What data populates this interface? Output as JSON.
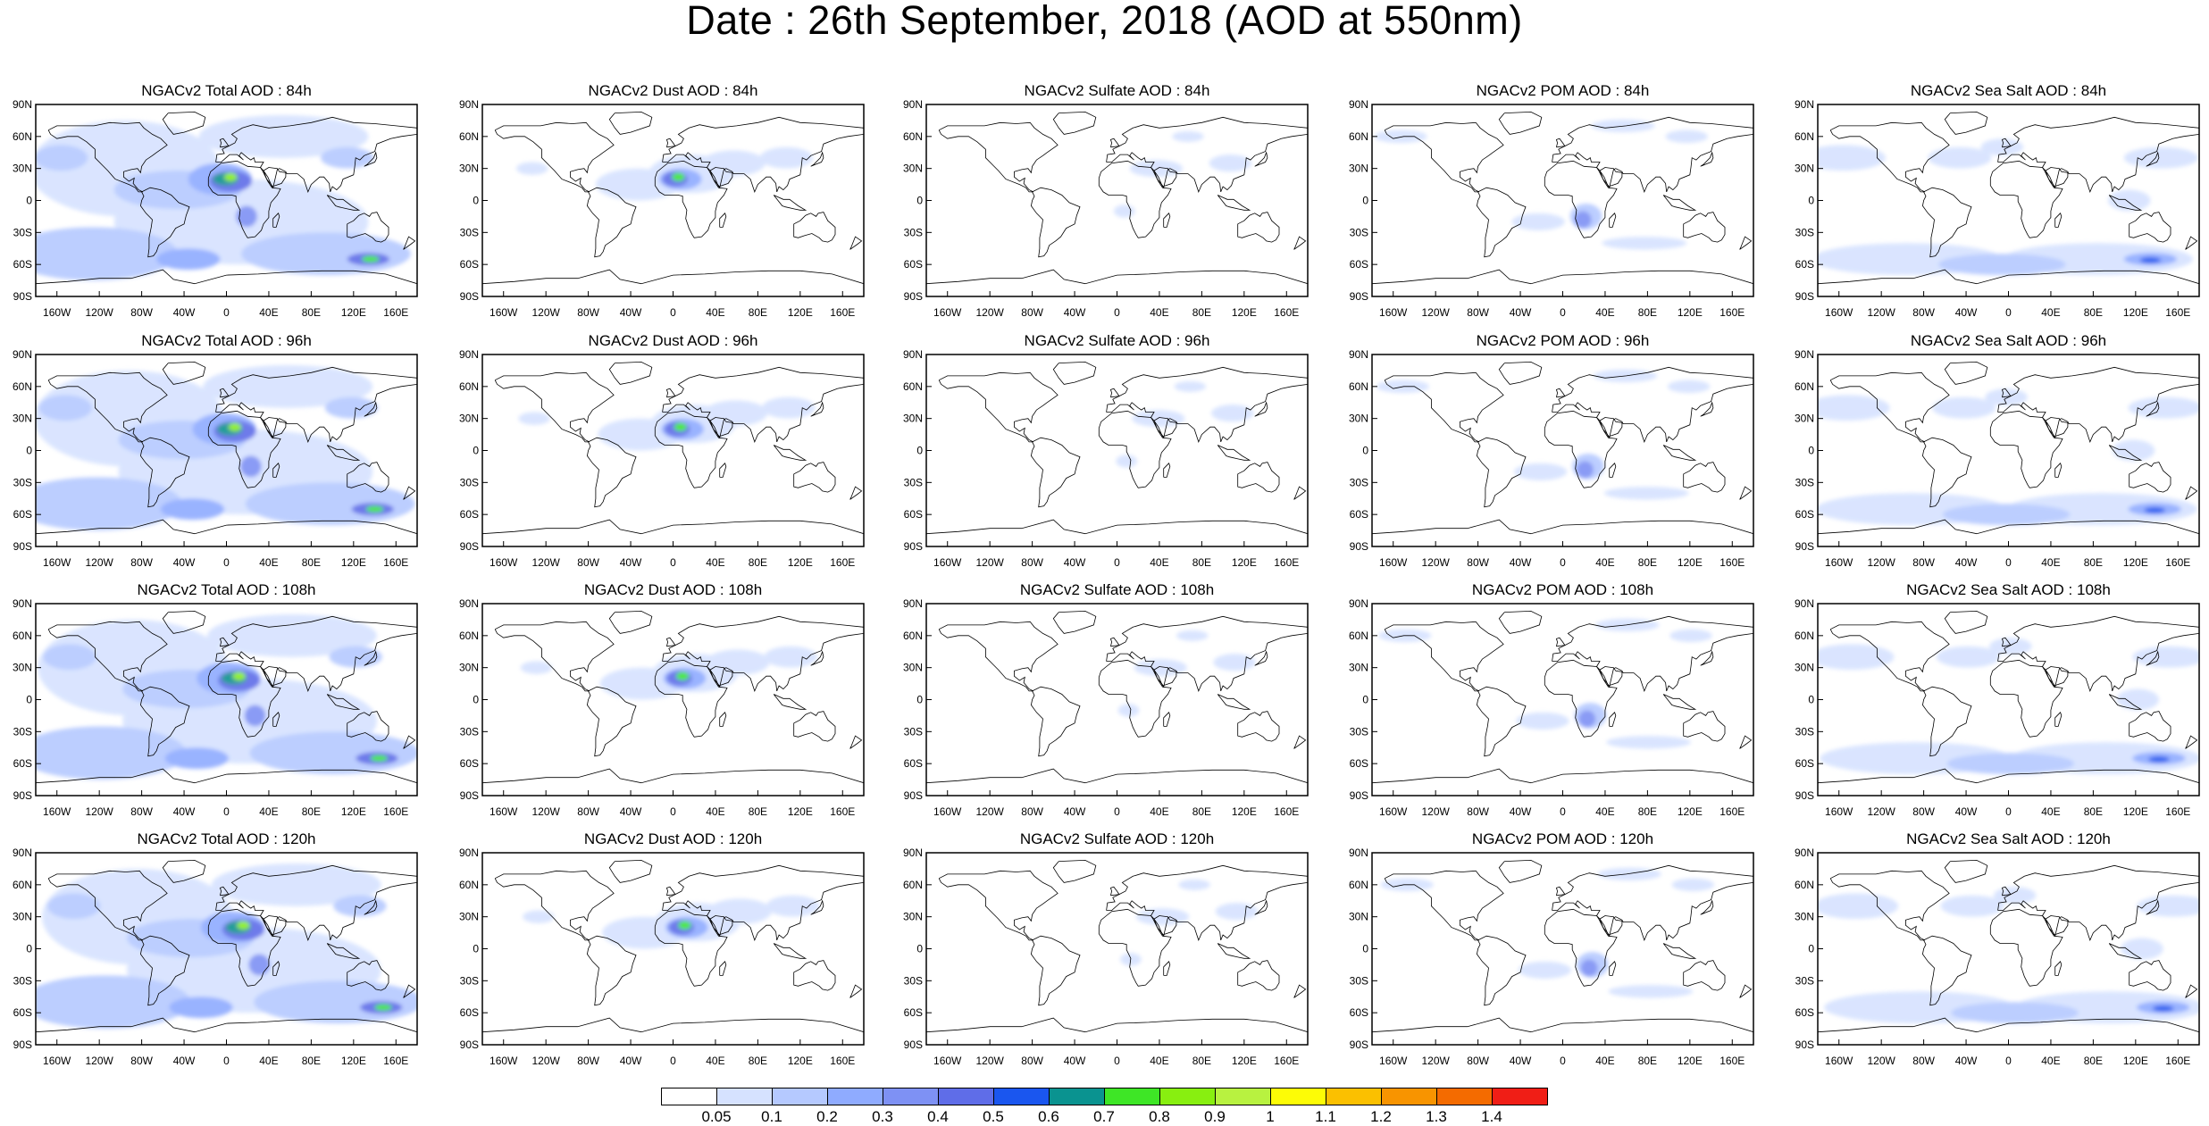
{
  "title": "Date : 26th September, 2018 (AOD at 550nm)",
  "lat_ticks": [
    "90N",
    "60N",
    "30N",
    "0",
    "30S",
    "60S",
    "90S"
  ],
  "lon_ticks": [
    "160W",
    "120W",
    "80W",
    "40W",
    "0",
    "40E",
    "80E",
    "120E",
    "160E"
  ],
  "panels": [
    {
      "title": "NGACv2 Total AOD : 84h",
      "species": "total",
      "hour": "84h"
    },
    {
      "title": "NGACv2 Dust AOD : 84h",
      "species": "dust",
      "hour": "84h"
    },
    {
      "title": "NGACv2 Sulfate AOD : 84h",
      "species": "sulfate",
      "hour": "84h"
    },
    {
      "title": "NGACv2 POM AOD : 84h",
      "species": "pom",
      "hour": "84h"
    },
    {
      "title": "NGACv2 Sea Salt AOD : 84h",
      "species": "seasalt",
      "hour": "84h"
    },
    {
      "title": "NGACv2 Total AOD : 96h",
      "species": "total",
      "hour": "96h"
    },
    {
      "title": "NGACv2 Dust AOD : 96h",
      "species": "dust",
      "hour": "96h"
    },
    {
      "title": "NGACv2 Sulfate AOD : 96h",
      "species": "sulfate",
      "hour": "96h"
    },
    {
      "title": "NGACv2 POM AOD : 96h",
      "species": "pom",
      "hour": "96h"
    },
    {
      "title": "NGACv2 Sea Salt AOD : 96h",
      "species": "seasalt",
      "hour": "96h"
    },
    {
      "title": "NGACv2 Total AOD : 108h",
      "species": "total",
      "hour": "108h"
    },
    {
      "title": "NGACv2 Dust AOD : 108h",
      "species": "dust",
      "hour": "108h"
    },
    {
      "title": "NGACv2 Sulfate AOD : 108h",
      "species": "sulfate",
      "hour": "108h"
    },
    {
      "title": "NGACv2 POM AOD : 108h",
      "species": "pom",
      "hour": "108h"
    },
    {
      "title": "NGACv2 Sea Salt AOD : 108h",
      "species": "seasalt",
      "hour": "108h"
    },
    {
      "title": "NGACv2 Total AOD : 120h",
      "species": "total",
      "hour": "120h"
    },
    {
      "title": "NGACv2 Dust AOD : 120h",
      "species": "dust",
      "hour": "120h"
    },
    {
      "title": "NGACv2 Sulfate AOD : 120h",
      "species": "sulfate",
      "hour": "120h"
    },
    {
      "title": "NGACv2 POM AOD : 120h",
      "species": "pom",
      "hour": "120h"
    },
    {
      "title": "NGACv2 Sea Salt  AOD : 120h",
      "species": "seasalt",
      "hour": "120h"
    }
  ],
  "colorbar": {
    "labels": [
      "0.05",
      "0.1",
      "0.2",
      "0.3",
      "0.4",
      "0.5",
      "0.6",
      "0.7",
      "0.8",
      "0.9",
      "1",
      "1.1",
      "1.2",
      "1.3",
      "1.4"
    ],
    "colors": [
      "#ffffff",
      "#d6e2ff",
      "#b5c9ff",
      "#8fabff",
      "#7e91f4",
      "#5f6de8",
      "#1a56ef",
      "#0a9390",
      "#3ee626",
      "#88ef10",
      "#b8f240",
      "#fdfc06",
      "#fbc000",
      "#f89400",
      "#f46b00",
      "#f01e16"
    ]
  },
  "color_scale": {
    "ocean_haze": "#b5c9ff",
    "dust": "#88ef10",
    "smoke": "#5f6de8",
    "seasalt_band": "#7e91f4",
    "coastline": "#000000"
  }
}
